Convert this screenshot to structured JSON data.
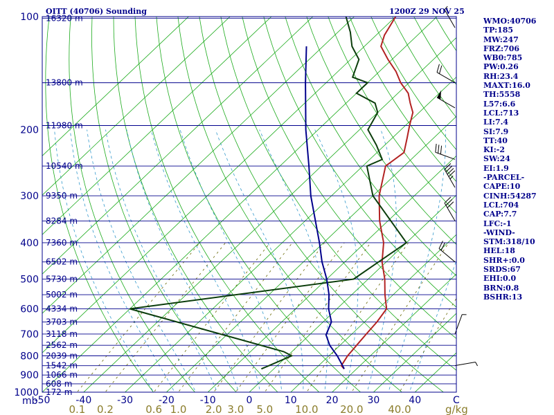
{
  "chart_data": {
    "type": "skew-t",
    "title_left": "OITT (40706) Sounding",
    "title_right": "1200Z 29 NOV 25",
    "xlabel": "C",
    "x2label": "g/kg",
    "pressure_unit": "mb",
    "plim": [
      100,
      1000
    ],
    "tlim": [
      -50,
      50
    ],
    "pressure_ticks": [
      100,
      200,
      300,
      400,
      500,
      600,
      700,
      800,
      900,
      1000
    ],
    "temperature_ticks": [
      -50,
      -40,
      -30,
      -20,
      -10,
      0,
      10,
      20,
      30,
      40
    ],
    "mixing_ratio_labels": [
      "0.1",
      "0.2",
      "0.6",
      "1.0",
      "2.0",
      "3.0",
      "5.0",
      "10.0",
      "20.0",
      "40.0"
    ],
    "mixing_ratio_values": [
      0.1,
      0.2,
      0.6,
      1.0,
      2.0,
      3.0,
      5.0,
      10.0,
      20.0,
      40.0
    ],
    "height_levels": [
      {
        "p": 101,
        "label": "16320 m"
      },
      {
        "p": 150,
        "label": "13800 m"
      },
      {
        "p": 195,
        "label": "11980 m"
      },
      {
        "p": 250,
        "label": "10540 m"
      },
      {
        "p": 300,
        "label": "9350 m"
      },
      {
        "p": 350,
        "label": "8284 m"
      },
      {
        "p": 400,
        "label": "7360 m"
      },
      {
        "p": 450,
        "label": "6502 m"
      },
      {
        "p": 500,
        "label": "5730 m"
      },
      {
        "p": 550,
        "label": "5002 m"
      },
      {
        "p": 600,
        "label": "4334 m"
      },
      {
        "p": 650,
        "label": "3703 m"
      },
      {
        "p": 700,
        "label": "3118 m"
      },
      {
        "p": 750,
        "label": "2562 m"
      },
      {
        "p": 800,
        "label": "2039 m"
      },
      {
        "p": 850,
        "label": "1542 m"
      },
      {
        "p": 900,
        "label": "1066 m"
      },
      {
        "p": 950,
        "label": "608 m"
      },
      {
        "p": 1000,
        "label": "172 m"
      }
    ],
    "series": [
      {
        "name": "temperature",
        "color": "#b22222",
        "points": [
          [
            867,
            17.0
          ],
          [
            850,
            15.5
          ],
          [
            800,
            14.5
          ],
          [
            750,
            14.0
          ],
          [
            700,
            13.5
          ],
          [
            650,
            13.0
          ],
          [
            600,
            12.0
          ],
          [
            550,
            8.0
          ],
          [
            500,
            4.0
          ],
          [
            450,
            -1.0
          ],
          [
            400,
            -5.5
          ],
          [
            350,
            -12.0
          ],
          [
            300,
            -18.5
          ],
          [
            250,
            -24.5
          ],
          [
            230,
            -23.5
          ],
          [
            210,
            -26.5
          ],
          [
            195,
            -29.0
          ],
          [
            180,
            -31.5
          ],
          [
            170,
            -34.5
          ],
          [
            160,
            -37.5
          ],
          [
            150,
            -42.0
          ],
          [
            140,
            -46.0
          ],
          [
            130,
            -51.0
          ],
          [
            120,
            -56.0
          ],
          [
            112,
            -58.0
          ],
          [
            100,
            -60.0
          ]
        ]
      },
      {
        "name": "dewpoint",
        "color": "#0b3d0b",
        "points": [
          [
            867,
            -3.0
          ],
          [
            850,
            -2.0
          ],
          [
            800,
            1.0
          ],
          [
            780,
            -2.0
          ],
          [
            600,
            -50.0
          ],
          [
            500,
            -3.5
          ],
          [
            400,
            0.0
          ],
          [
            300,
            -20.0
          ],
          [
            250,
            -29.0
          ],
          [
            240,
            -27.0
          ],
          [
            220,
            -32.0
          ],
          [
            200,
            -38.0
          ],
          [
            180,
            -40.0
          ],
          [
            170,
            -43.0
          ],
          [
            160,
            -50.0
          ],
          [
            150,
            -50.0
          ],
          [
            145,
            -55.0
          ],
          [
            130,
            -58.0
          ],
          [
            120,
            -63.0
          ],
          [
            110,
            -67.0
          ],
          [
            100,
            -72.0
          ]
        ]
      },
      {
        "name": "parcel",
        "color": "#00008b",
        "points": [
          [
            867,
            17.0
          ],
          [
            850,
            15.8
          ],
          [
            800,
            12.0
          ],
          [
            750,
            7.5
          ],
          [
            704,
            4.0
          ],
          [
            650,
            2.0
          ],
          [
            600,
            -2.0
          ],
          [
            550,
            -5.5
          ],
          [
            500,
            -10.0
          ],
          [
            450,
            -15.5
          ],
          [
            400,
            -21.0
          ],
          [
            350,
            -27.5
          ],
          [
            300,
            -35.0
          ],
          [
            250,
            -43.0
          ],
          [
            200,
            -53.0
          ],
          [
            150,
            -65.0
          ],
          [
            120,
            -74.0
          ]
        ]
      }
    ],
    "wind_barbs": [
      {
        "p": 107,
        "dir": 330,
        "kt": 5
      },
      {
        "p": 150,
        "dir": 300,
        "kt": 20
      },
      {
        "p": 175,
        "dir": 300,
        "kt": 50
      },
      {
        "p": 240,
        "dir": 290,
        "kt": 30
      },
      {
        "p": 285,
        "dir": 330,
        "kt": 45
      },
      {
        "p": 350,
        "dir": 330,
        "kt": 30
      },
      {
        "p": 450,
        "dir": 310,
        "kt": 20
      },
      {
        "p": 700,
        "dir": 20,
        "kt": 5
      },
      {
        "p": 850,
        "dir": 80,
        "kt": 5
      }
    ],
    "indices": [
      "WMO:40706",
      "TP:185",
      "MW:247",
      "FRZ:706",
      "WB0:785",
      "PW:0.26",
      "RH:23.4",
      "MAXT:16.0",
      "TH:5558",
      "L57:6.6",
      "LCL:713",
      "LI:7.4",
      "SI:7.9",
      "TT:40",
      "KI:-2",
      "SW:24",
      "EI:1.9",
      "-PARCEL-",
      "CAPE:10",
      "CINH:54287",
      "LCL:704",
      "CAP:7.7",
      "LFC:-1",
      "-WIND-",
      "STM:318/10",
      "HEL:18",
      "SHR+:0.0",
      "SRDS:67",
      "EHI:0.0",
      "BRN:0.8",
      "BSHR:13"
    ],
    "colors": {
      "isobar": "#00008b",
      "isotherm": "#1aaa1a",
      "dry_adiabat": "#1aaa1a",
      "moist_adiabat": "#3399cc",
      "mixing_ratio": "#666600",
      "text": "#00008b",
      "mixing_label": "#8b7d2b"
    }
  }
}
